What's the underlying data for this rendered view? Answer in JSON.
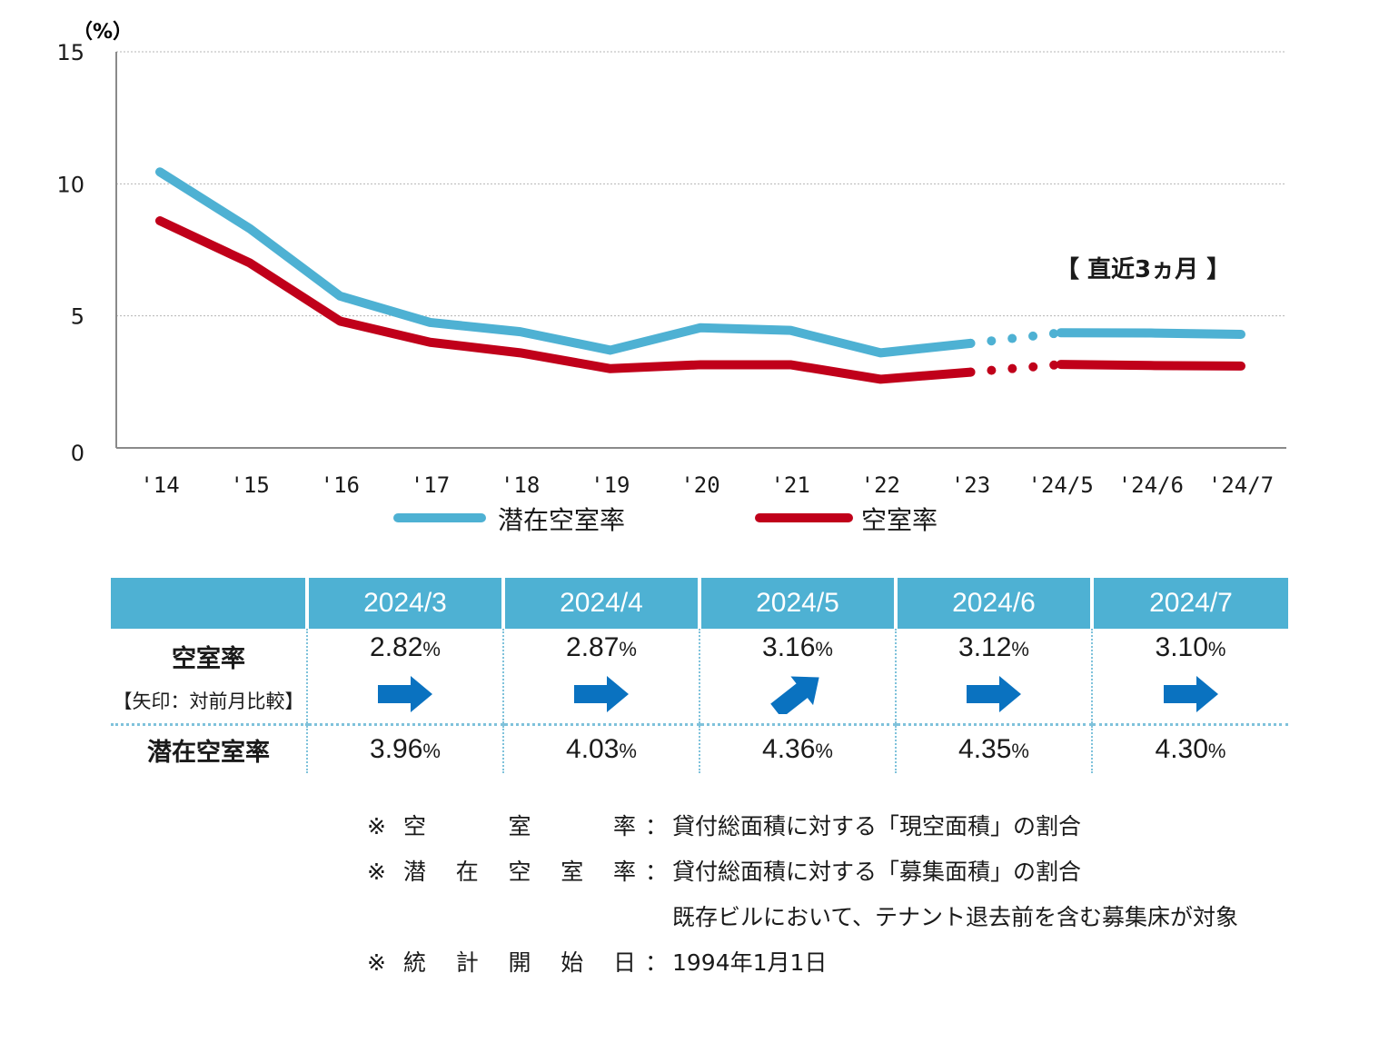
{
  "chart_data": {
    "type": "line",
    "y_unit_label": "（%）",
    "ylim": [
      0,
      15
    ],
    "yticks": [
      0,
      5,
      10,
      15
    ],
    "categories": [
      "'14",
      "'15",
      "'16",
      "'17",
      "'18",
      "'19",
      "'20",
      "'21",
      "'22",
      "'23",
      "'24/5",
      "'24/6",
      "'24/7"
    ],
    "series": [
      {
        "name": "潜在空室率",
        "color": "#4eb1d3",
        "values": [
          10.45,
          8.3,
          5.75,
          4.75,
          4.4,
          3.7,
          4.55,
          4.45,
          3.6,
          3.96,
          4.36,
          4.35,
          4.3
        ]
      },
      {
        "name": "空室率",
        "color": "#c0001a",
        "values": [
          8.6,
          7.0,
          4.8,
          4.0,
          3.6,
          3.0,
          3.15,
          3.15,
          2.6,
          2.87,
          3.16,
          3.12,
          3.1
        ]
      }
    ],
    "gridlines": true,
    "annotation": "【 直近3ヵ月 】",
    "dotted_segment": "'23 to '24/5"
  },
  "table": {
    "headers": [
      "",
      "2024/3",
      "2024/4",
      "2024/5",
      "2024/6",
      "2024/7"
    ],
    "vacancy": {
      "label": "空室率",
      "sublabel": "【矢印：対前月比較】",
      "values": [
        "2.82",
        "2.87",
        "3.16",
        "3.12",
        "3.10"
      ],
      "arrows": [
        "right",
        "right",
        "up-right",
        "right",
        "right"
      ]
    },
    "potential": {
      "label": "潜在空室率",
      "values": [
        "3.96",
        "4.03",
        "4.36",
        "4.35",
        "4.30"
      ]
    },
    "unit": "%",
    "arrow_color": "#0a72c0"
  },
  "notes": [
    {
      "mark": "※",
      "label_chars": [
        "空",
        "室",
        "率"
      ],
      "colon": "：",
      "text": "貸付総面積に対する「現空面積」の割合"
    },
    {
      "mark": "※",
      "label_chars": [
        "潜",
        "在",
        "空",
        "室",
        "率"
      ],
      "colon": "：",
      "text": "貸付総面積に対する「募集面積」の割合"
    },
    {
      "mark": "",
      "label_chars": [],
      "colon": "",
      "text": "既存ビルにおいて、テナント退去前を含む募集床が対象"
    },
    {
      "mark": "※",
      "label_chars": [
        "統",
        "計",
        "開",
        "始",
        "日"
      ],
      "colon": "：",
      "text": "1994年1月1日"
    }
  ]
}
